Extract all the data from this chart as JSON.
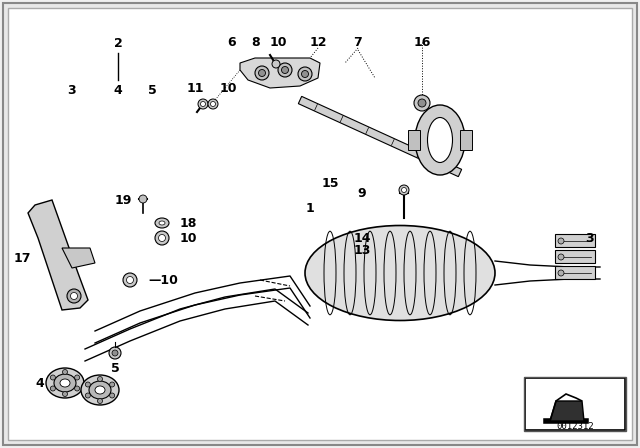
{
  "bg_color": "#ffffff",
  "border_color": "#000000",
  "part_number": "0012312"
}
